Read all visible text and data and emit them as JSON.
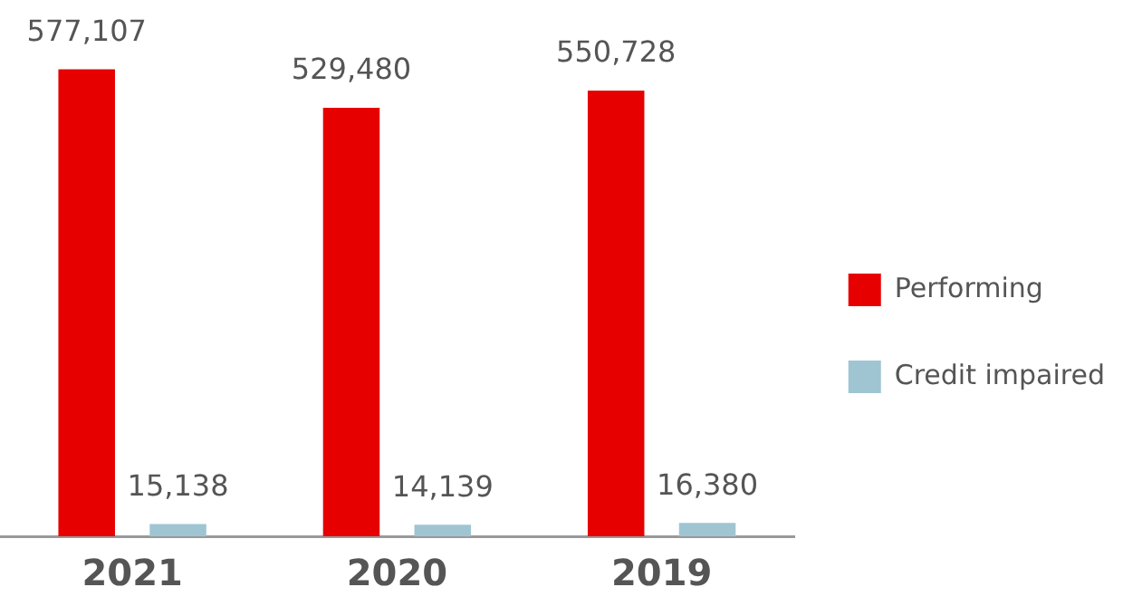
{
  "chart_data": {
    "type": "bar",
    "categories": [
      "2021",
      "2020",
      "2019"
    ],
    "series": [
      {
        "name": "Performing",
        "color": "#e60000",
        "values": [
          577107,
          529480,
          550728
        ],
        "value_labels": [
          "577,107",
          "529,480",
          "550,728"
        ]
      },
      {
        "name": "Credit impaired",
        "color": "#9fc5d3",
        "values": [
          15138,
          14139,
          16380
        ],
        "value_labels": [
          "15,138",
          "14,139",
          "16,380"
        ]
      }
    ],
    "legend": "right",
    "grid": false,
    "tick_labels": "x"
  }
}
